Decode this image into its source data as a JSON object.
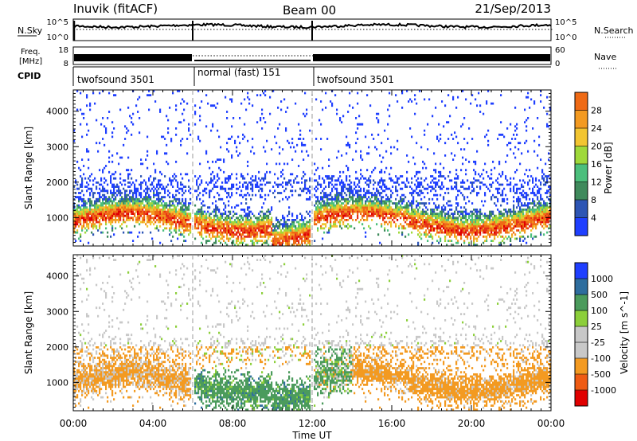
{
  "header": {
    "station": "Inuvik (fitACF)",
    "beam": "Beam 00",
    "date": "21/Sep/2013"
  },
  "colors": {
    "power": [
      "#1f3fff",
      "#2d55b4",
      "#3f8a5c",
      "#4bbf7c",
      "#9fd93a",
      "#f2c531",
      "#f39a21",
      "#ef6a15",
      "#e63218",
      "#e00000"
    ],
    "velocity": [
      "#e00000",
      "#ef5b13",
      "#f39a21",
      "#c8c8c8",
      "#c8c8c8",
      "#8ccf3a",
      "#4b9b5c",
      "#2e6d9e",
      "#1f3fff"
    ]
  },
  "chart_data": [
    {
      "type": "line",
      "name": "sky-noise-panel",
      "ylabel_left": "N.Sky",
      "ylabel_right": "N.Search",
      "left_ticks": [
        "10^5",
        "10^0"
      ],
      "right_ticks": [
        "10^5",
        "10^0"
      ],
      "legend_right": "N.Search"
    },
    {
      "type": "line",
      "name": "frequency-panel",
      "ylabel_left_top": "Freq.",
      "ylabel_left_bottom": "[MHz]",
      "left_ticks": [
        18,
        8
      ],
      "right_ticks": [
        60,
        0
      ],
      "legend_right": "Nave"
    },
    {
      "type": "table",
      "name": "cpid",
      "label": "CPID",
      "segments": [
        {
          "name": "twofsound 3501",
          "start_hour": 0,
          "end_hour": 6
        },
        {
          "name": "normal (fast) 151",
          "start_hour": 6,
          "end_hour": 12
        },
        {
          "name": "twofsound 3501",
          "start_hour": 12,
          "end_hour": 24
        }
      ]
    },
    {
      "type": "heatmap",
      "name": "power",
      "ylabel": "Slant Range [km]",
      "yticks": [
        1000,
        2000,
        3000,
        4000
      ],
      "ylim": [
        200,
        4600
      ],
      "colorbar_label": "Power [dB]",
      "colorbar_ticks": [
        4,
        8,
        12,
        16,
        20,
        24,
        28
      ],
      "clim": [
        0,
        32
      ]
    },
    {
      "type": "heatmap",
      "name": "velocity",
      "ylabel": "Slant Range [km]",
      "yticks": [
        1000,
        2000,
        3000,
        4000
      ],
      "ylim": [
        200,
        4600
      ],
      "colorbar_label": "Velocity [m s^-1]",
      "colorbar_ticks": [
        "-1000",
        "-500",
        "-100",
        "-25",
        "25",
        "100",
        "500",
        "1000"
      ],
      "xlabel": "Time UT",
      "xticks": [
        "00:00",
        "04:00",
        "08:00",
        "12:00",
        "16:00",
        "20:00",
        "00:00"
      ],
      "xlim_hours": [
        0,
        24
      ]
    }
  ]
}
